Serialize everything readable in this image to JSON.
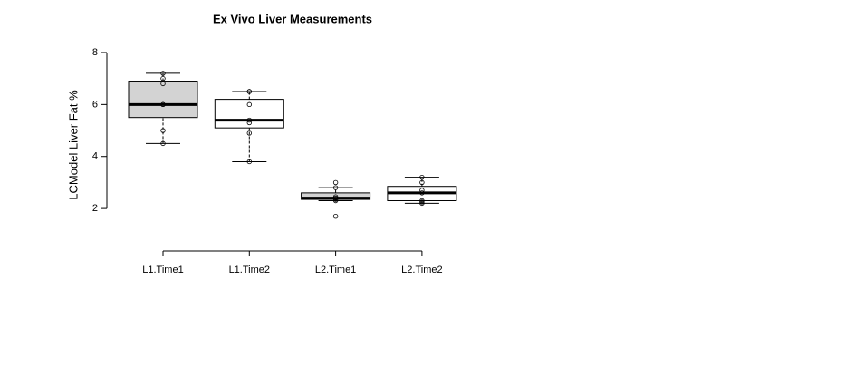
{
  "chart_data": {
    "type": "box",
    "title": "Ex Vivo Liver Measurements",
    "y_label": "LCModel Liver Fat %",
    "categories": [
      "L1.Time1",
      "L1.Time2",
      "L2.Time1",
      "L2.Time2"
    ],
    "boxes": [
      {
        "low": 4.5,
        "q1": 5.5,
        "median": 6.0,
        "q3": 6.9,
        "high": 7.2,
        "color": "#d3d3d3"
      },
      {
        "low": 3.8,
        "q1": 5.1,
        "median": 5.4,
        "q3": 6.2,
        "high": 6.5,
        "color": "#ffffff"
      },
      {
        "low": 2.3,
        "q1": 2.35,
        "median": 2.4,
        "q3": 2.6,
        "high": 2.8,
        "color": "#d3d3d3"
      },
      {
        "low": 2.2,
        "q1": 2.3,
        "median": 2.6,
        "q3": 2.85,
        "high": 3.2,
        "color": "#ffffff"
      }
    ],
    "points": [
      [
        7.2,
        7.0,
        6.8,
        6.0,
        6.0,
        5.0,
        4.5
      ],
      [
        6.5,
        6.5,
        6.0,
        5.4,
        5.3,
        4.9,
        3.8
      ],
      [
        3.0,
        2.8,
        2.45,
        2.4,
        2.35,
        2.3,
        1.7
      ],
      [
        3.2,
        3.0,
        2.7,
        2.6,
        2.3,
        2.25,
        2.2
      ]
    ],
    "ylim": [
      0.4,
      8.4
    ],
    "yticks": [
      2,
      4,
      6,
      8
    ]
  }
}
